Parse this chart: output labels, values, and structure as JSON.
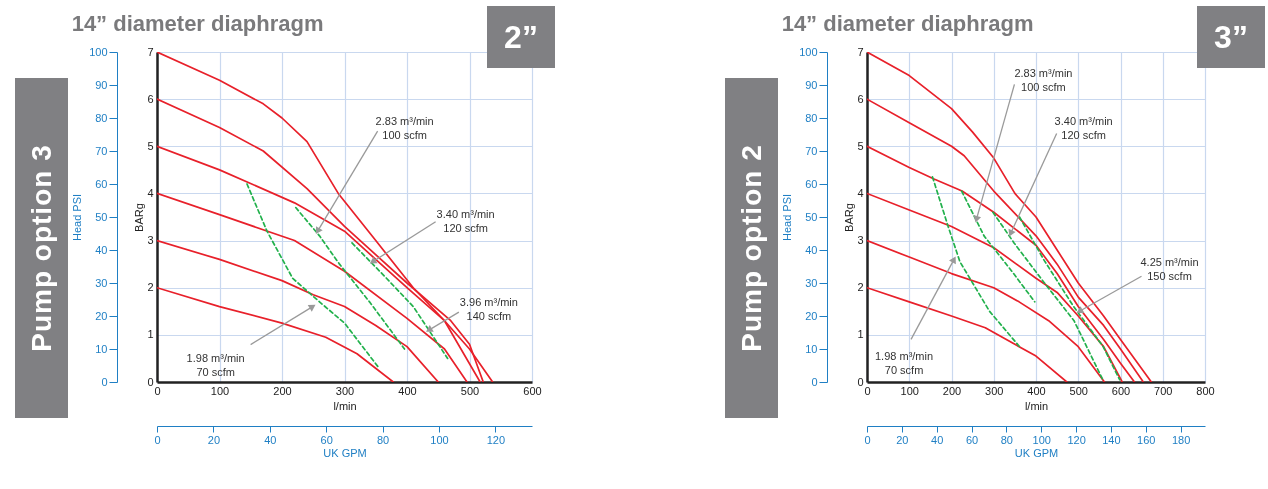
{
  "chart_data": [
    {
      "type": "line",
      "title": "14” diameter diaphragm",
      "subtitle": "2”",
      "xlabel": "l/min",
      "ylabel": "BARg",
      "y2label": "Head PSI",
      "x2label": "UK GPM",
      "xlim": [
        0,
        600
      ],
      "xticks": [
        0,
        100,
        200,
        300,
        400,
        500,
        600
      ],
      "ylim": [
        0,
        7
      ],
      "yticks": [
        0,
        1,
        2,
        3,
        4,
        5,
        6,
        7
      ],
      "y2lim": [
        0,
        100
      ],
      "y2ticks": [
        0,
        10,
        20,
        30,
        40,
        50,
        60,
        70,
        80,
        90,
        100
      ],
      "x2lim": [
        0,
        133
      ],
      "x2ticks": [
        0,
        20,
        40,
        60,
        80,
        100,
        120
      ],
      "grid": true,
      "annotations": [
        "Pump option 3",
        {
          "text": "2.83 m³/min\n100 scfm",
          "x": 257,
          "y": 3.2
        },
        {
          "text": "3.40 m³/min\n120 scfm",
          "x": 345,
          "y": 2.55
        },
        {
          "text": "3.96 m³/min\n140 scfm",
          "x": 435,
          "y": 1.1
        },
        {
          "text": "1.98 m³/min\n70 scfm",
          "x": 249,
          "y": 1.6
        }
      ],
      "series": [
        {
          "color": "#e8202a",
          "line_style": "solid",
          "x": [
            0,
            100,
            170,
            200,
            240,
            290,
            350,
            410,
            460,
            500,
            537
          ],
          "values": [
            7,
            6.4,
            5.9,
            5.6,
            5.1,
            4.0,
            3.0,
            2.0,
            1.3,
            0.7,
            0
          ]
        },
        {
          "color": "#e8202a",
          "line_style": "solid",
          "x": [
            0,
            100,
            170,
            240,
            300,
            400,
            470,
            500,
            522
          ],
          "values": [
            6,
            5.4,
            4.9,
            4.1,
            3.3,
            2.1,
            1.3,
            0.8,
            0
          ]
        },
        {
          "color": "#e8202a",
          "line_style": "solid",
          "x": [
            0,
            100,
            220,
            300,
            400,
            460,
            517
          ],
          "values": [
            5,
            4.5,
            3.8,
            3.2,
            2.0,
            1.3,
            0
          ]
        },
        {
          "color": "#e8202a",
          "line_style": "solid",
          "x": [
            0,
            100,
            220,
            300,
            400,
            460,
            496
          ],
          "values": [
            4,
            3.55,
            3.0,
            2.35,
            1.35,
            0.7,
            0
          ]
        },
        {
          "color": "#e8202a",
          "line_style": "solid",
          "x": [
            0,
            100,
            200,
            250,
            300,
            350,
            400,
            450
          ],
          "values": [
            3,
            2.6,
            2.15,
            1.85,
            1.6,
            1.2,
            0.75,
            0
          ]
        },
        {
          "color": "#e8202a",
          "line_style": "solid",
          "x": [
            0,
            100,
            200,
            270,
            320,
            378
          ],
          "values": [
            2,
            1.6,
            1.25,
            0.95,
            0.6,
            0
          ]
        },
        {
          "color": "#22b14c",
          "line_style": "dashed",
          "x": [
            144,
            176,
            217,
            260,
            300,
            355
          ],
          "values": [
            4.2,
            3.2,
            2.2,
            1.7,
            1.25,
            0.3
          ]
        },
        {
          "color": "#22b14c",
          "line_style": "dashed",
          "x": [
            222,
            260,
            292,
            340,
            396
          ],
          "values": [
            3.7,
            3.1,
            2.5,
            1.7,
            0.7
          ]
        },
        {
          "color": "#22b14c",
          "line_style": "dashed",
          "x": [
            312,
            360,
            410,
            440,
            465
          ],
          "values": [
            2.95,
            2.3,
            1.6,
            1.0,
            0.5
          ]
        }
      ]
    },
    {
      "type": "line",
      "title": "14” diameter diaphragm",
      "subtitle": "3”",
      "xlabel": "l/min",
      "ylabel": "BARg",
      "y2label": "Head PSI",
      "x2label": "UK GPM",
      "xlim": [
        0,
        800
      ],
      "xticks": [
        0,
        100,
        200,
        300,
        400,
        500,
        600,
        700,
        800
      ],
      "ylim": [
        0,
        7
      ],
      "yticks": [
        0,
        1,
        2,
        3,
        4,
        5,
        6,
        7
      ],
      "y2lim": [
        0,
        100
      ],
      "y2ticks": [
        0,
        10,
        20,
        30,
        40,
        50,
        60,
        70,
        80,
        90,
        100
      ],
      "x2lim": [
        0,
        194
      ],
      "x2ticks": [
        0,
        20,
        40,
        60,
        80,
        100,
        120,
        140,
        160,
        180
      ],
      "grid": true,
      "annotations": [
        "Pump option 2",
        {
          "text": "2.83 m³/min\n100 scfm",
          "x": 259,
          "y": 3.45
        },
        {
          "text": "3.40 m³/min\n120 scfm",
          "x": 340,
          "y": 3.15
        },
        {
          "text": "4.25 m³/min\n150 scfm",
          "x": 503,
          "y": 1.5
        },
        {
          "text": "1.98 m³/min\n70 scfm",
          "x": 206,
          "y": 2.6
        }
      ],
      "series": [
        {
          "color": "#e8202a",
          "line_style": "solid",
          "x": [
            0,
            100,
            150,
            200,
            250,
            300,
            350,
            400,
            450,
            500,
            560,
            600,
            673
          ],
          "values": [
            7,
            6.5,
            6.15,
            5.8,
            5.3,
            4.75,
            4.0,
            3.5,
            2.8,
            2.1,
            1.4,
            0.9,
            0
          ]
        },
        {
          "color": "#e8202a",
          "line_style": "solid",
          "x": [
            0,
            100,
            200,
            230,
            300,
            400,
            450,
            500,
            560,
            600,
            654
          ],
          "values": [
            6,
            5.5,
            5.0,
            4.8,
            4.05,
            3.1,
            2.5,
            1.8,
            1.2,
            0.7,
            0
          ]
        },
        {
          "color": "#e8202a",
          "line_style": "solid",
          "x": [
            0,
            100,
            160,
            225,
            300,
            400,
            450,
            500,
            560,
            600,
            633
          ],
          "values": [
            5,
            4.55,
            4.3,
            4.05,
            3.6,
            2.9,
            2.3,
            1.6,
            0.9,
            0.4,
            0
          ]
        },
        {
          "color": "#e8202a",
          "line_style": "solid",
          "x": [
            0,
            100,
            200,
            300,
            400,
            450,
            500,
            560,
            604
          ],
          "values": [
            4,
            3.65,
            3.3,
            2.85,
            2.2,
            1.9,
            1.4,
            0.75,
            0
          ]
        },
        {
          "color": "#e8202a",
          "line_style": "solid",
          "x": [
            0,
            100,
            200,
            300,
            360,
            430,
            500,
            562
          ],
          "values": [
            3,
            2.65,
            2.3,
            2.0,
            1.7,
            1.3,
            0.75,
            0
          ]
        },
        {
          "color": "#e8202a",
          "line_style": "solid",
          "x": [
            0,
            100,
            200,
            280,
            350,
            400,
            473
          ],
          "values": [
            2,
            1.7,
            1.4,
            1.15,
            0.8,
            0.55,
            0
          ]
        },
        {
          "color": "#22b14c",
          "line_style": "dashed",
          "x": [
            155,
            192,
            220,
            250,
            290,
            361
          ],
          "values": [
            4.35,
            3.3,
            2.55,
            2.1,
            1.5,
            0.75
          ]
        },
        {
          "color": "#22b14c",
          "line_style": "dashed",
          "x": [
            224,
            277,
            347,
            397
          ],
          "values": [
            4.05,
            3.1,
            2.3,
            1.7
          ]
        },
        {
          "color": "#22b14c",
          "line_style": "dashed",
          "x": [
            298,
            348,
            420,
            490,
            558
          ],
          "values": [
            3.6,
            2.95,
            2.1,
            1.3,
            0.05
          ]
        },
        {
          "color": "#22b14c",
          "line_style": "dashed",
          "x": [
            361,
            418,
            489,
            559,
            598
          ],
          "values": [
            3.5,
            2.6,
            1.6,
            0.75,
            0.05
          ]
        }
      ]
    }
  ]
}
